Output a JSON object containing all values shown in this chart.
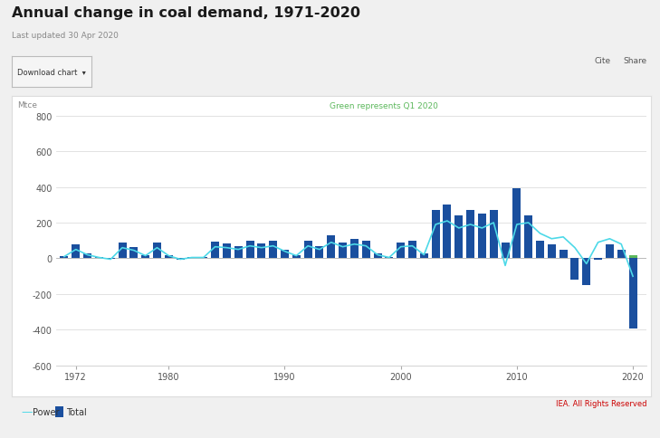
{
  "title": "Annual change in coal demand, 1971-2020",
  "subtitle": "Last updated 30 Apr 2020",
  "annotation": "Green represents Q1 2020",
  "ylabel": "Mtce",
  "watermark": "IEA. All Rights Reserved",
  "years": [
    1971,
    1972,
    1973,
    1974,
    1975,
    1976,
    1977,
    1978,
    1979,
    1980,
    1981,
    1982,
    1983,
    1984,
    1985,
    1986,
    1987,
    1988,
    1989,
    1990,
    1991,
    1992,
    1993,
    1994,
    1995,
    1996,
    1997,
    1998,
    1999,
    2000,
    2001,
    2002,
    2003,
    2004,
    2005,
    2006,
    2007,
    2008,
    2009,
    2010,
    2011,
    2012,
    2013,
    2014,
    2015,
    2016,
    2017,
    2018,
    2019,
    2020
  ],
  "total_bars": [
    15,
    80,
    30,
    10,
    -5,
    90,
    65,
    20,
    90,
    20,
    -10,
    10,
    10,
    95,
    85,
    70,
    100,
    85,
    100,
    50,
    20,
    100,
    70,
    130,
    90,
    110,
    100,
    30,
    10,
    90,
    100,
    30,
    270,
    300,
    240,
    270,
    250,
    270,
    90,
    390,
    240,
    100,
    80,
    50,
    -120,
    -150,
    -10,
    80,
    50,
    -390
  ],
  "power_line": [
    10,
    50,
    20,
    5,
    -5,
    60,
    45,
    15,
    60,
    15,
    -5,
    5,
    5,
    65,
    60,
    50,
    70,
    60,
    70,
    40,
    15,
    70,
    50,
    90,
    65,
    80,
    70,
    20,
    5,
    65,
    70,
    20,
    190,
    210,
    170,
    190,
    170,
    200,
    -40,
    190,
    200,
    140,
    110,
    120,
    60,
    -30,
    90,
    110,
    80,
    -100
  ],
  "green_bar_2020": 20,
  "ylim": [
    -600,
    800
  ],
  "yticks": [
    -600,
    -400,
    -200,
    0,
    200,
    400,
    600,
    800
  ],
  "xtick_years": [
    1972,
    1980,
    1990,
    2000,
    2010,
    2020
  ],
  "bar_color": "#1a4f9e",
  "bar_color_2020_positive": "#5cb85c",
  "line_color": "#4dd9e8",
  "page_bg": "#f0f0f0",
  "chart_bg": "#ffffff",
  "legend_items": [
    {
      "label": "Power",
      "color": "#4dd9e8",
      "type": "line"
    },
    {
      "label": "Total",
      "color": "#1a4f9e",
      "type": "bar"
    }
  ]
}
